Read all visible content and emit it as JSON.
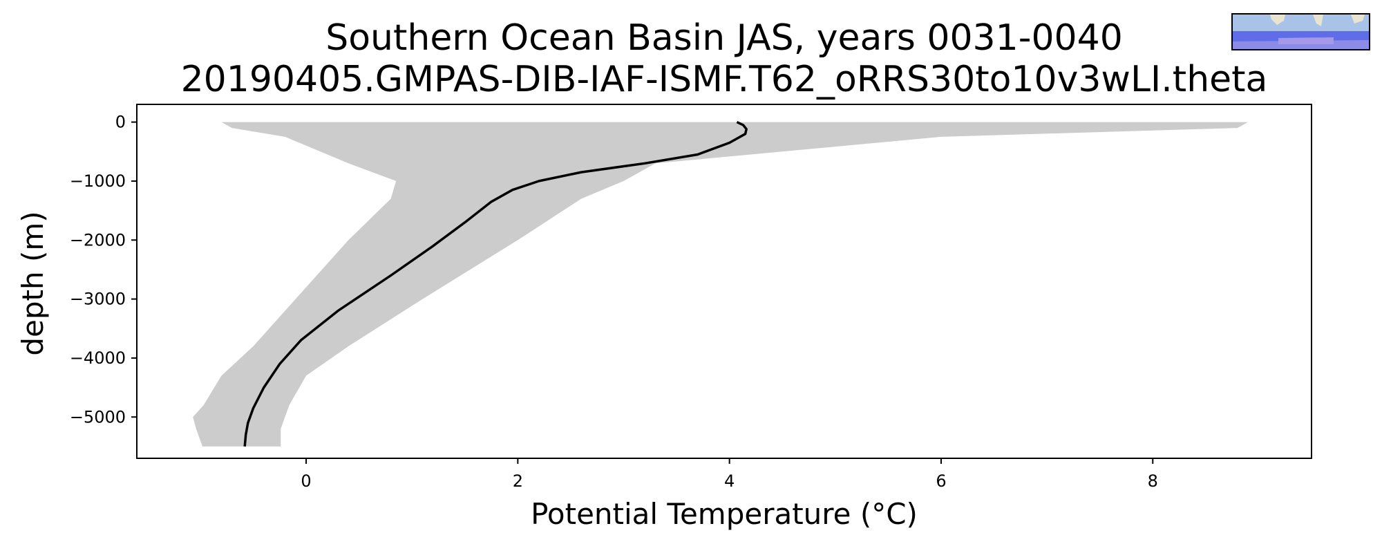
{
  "chart_data": {
    "type": "line",
    "title_line1": "Southern Ocean Basin JAS, years 0031-0040",
    "title_line2": "20190405.GMPAS-DIB-IAF-ISMF.T62_oRRS30to10v3wLI.theta",
    "xlabel": "Potential Temperature (°C)",
    "ylabel": "depth (m)",
    "xlim": [
      -1.6,
      9.5
    ],
    "ylim": [
      -5700,
      300
    ],
    "xticks": [
      0,
      2,
      4,
      6,
      8
    ],
    "yticks": [
      0,
      -1000,
      -2000,
      -3000,
      -4000,
      -5000
    ],
    "grid": false,
    "colors": {
      "mean_line": "#000000",
      "envelope": "#cccccc",
      "frame": "#000000"
    },
    "mean_profile": {
      "x": [
        4.07,
        4.13,
        4.16,
        4.15,
        4.0,
        3.7,
        3.2,
        2.6,
        2.2,
        1.95,
        1.75,
        1.5,
        1.2,
        0.8,
        0.3,
        -0.05,
        -0.25,
        -0.4,
        -0.5,
        -0.55,
        -0.57,
        -0.58
      ],
      "y": [
        0,
        -50,
        -120,
        -200,
        -350,
        -550,
        -700,
        -850,
        -1000,
        -1150,
        -1350,
        -1700,
        -2100,
        -2600,
        -3200,
        -3700,
        -4100,
        -4500,
        -4850,
        -5100,
        -5300,
        -5500
      ]
    },
    "envelope": {
      "min_x": [
        -0.8,
        -0.7,
        -0.2,
        0.4,
        0.85,
        0.8,
        0.4,
        -0.1,
        -0.5,
        -0.8,
        -0.97,
        -1.07,
        -1.04,
        -0.98
      ],
      "max_x": [
        8.9,
        8.8,
        6.0,
        3.3,
        3.0,
        2.6,
        2.0,
        1.1,
        0.4,
        0.0,
        -0.16,
        -0.2,
        -0.24,
        -0.24
      ],
      "y": [
        0,
        -100,
        -250,
        -700,
        -1000,
        -1300,
        -2000,
        -3000,
        -3800,
        -4300,
        -4800,
        -5000,
        -5200,
        -5500
      ]
    },
    "inset_map_icon": "southern-ocean-region-map"
  }
}
